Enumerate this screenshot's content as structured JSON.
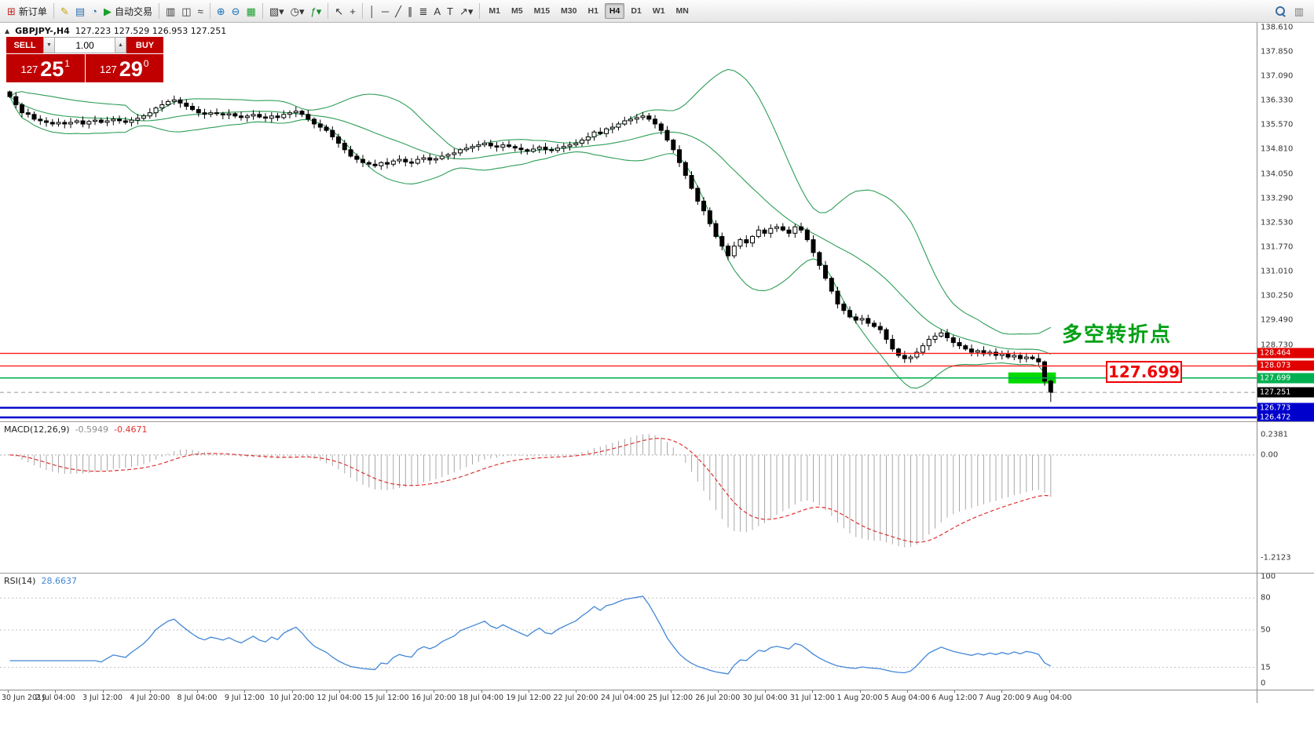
{
  "toolbar": {
    "buttons": [
      {
        "name": "new-order",
        "glyph": "⊞",
        "label": "新订单",
        "color": "#c22222"
      },
      {
        "name": "sep"
      },
      {
        "name": "metaeditor",
        "glyph": "✎",
        "color": "#c8a000"
      },
      {
        "name": "market-watch",
        "glyph": "▤",
        "color": "#2f6fb0"
      },
      {
        "name": "data-window",
        "glyph": "◔",
        "color": "#2f6fb0"
      },
      {
        "name": "autotrading",
        "glyph": "▶",
        "label": "自动交易",
        "color": "#18a02c"
      },
      {
        "name": "sep"
      },
      {
        "name": "bar-chart",
        "glyph": "▥",
        "color": "#333333"
      },
      {
        "name": "candlestick-chart",
        "glyph": "◫",
        "color": "#333333"
      },
      {
        "name": "line-chart",
        "glyph": "≈",
        "color": "#333333"
      },
      {
        "name": "sep"
      },
      {
        "name": "zoom-in",
        "glyph": "⊕",
        "color": "#1a6fb5"
      },
      {
        "name": "zoom-out",
        "glyph": "⊖",
        "color": "#1a6fb5"
      },
      {
        "name": "tile-windows",
        "glyph": "▦",
        "color": "#18a02c"
      },
      {
        "name": "sep"
      },
      {
        "name": "new-chart",
        "glyph": "▧▾",
        "color": "#333333"
      },
      {
        "name": "profiles",
        "glyph": "◷▾",
        "color": "#333333"
      },
      {
        "name": "indicators",
        "glyph": "ƒ▾",
        "color": "#168a2c"
      },
      {
        "name": "sep"
      },
      {
        "name": "cursor",
        "glyph": "↖",
        "color": "#333333"
      },
      {
        "name": "crosshair",
        "glyph": "+",
        "color": "#333333"
      },
      {
        "name": "sep"
      },
      {
        "name": "vertical-line",
        "glyph": "│",
        "color": "#333333"
      },
      {
        "name": "horizontal-line",
        "glyph": "─",
        "color": "#333333"
      },
      {
        "name": "trendline",
        "glyph": "╱",
        "color": "#333333"
      },
      {
        "name": "channel",
        "glyph": "∥",
        "color": "#333333"
      },
      {
        "name": "fibonacci",
        "glyph": "≣",
        "color": "#333333"
      },
      {
        "name": "text",
        "glyph": "A",
        "color": "#333333"
      },
      {
        "name": "label",
        "glyph": "T",
        "color": "#333333"
      },
      {
        "name": "arrows",
        "glyph": "↗▾",
        "color": "#333333"
      },
      {
        "name": "sep"
      }
    ],
    "timeframes": [
      "M1",
      "M5",
      "M15",
      "M30",
      "H1",
      "H4",
      "D1",
      "W1",
      "MN"
    ],
    "active_timeframe": "H4"
  },
  "trade_panel": {
    "sell_label": "SELL",
    "buy_label": "BUY",
    "volume": "1.00",
    "sell_price": {
      "prefix": "127",
      "big": "25",
      "sup": "1"
    },
    "buy_price": {
      "prefix": "127",
      "big": "29",
      "sup": "0"
    }
  },
  "chart": {
    "symbol": "GBPJPY-,H4",
    "ohlc_text": "127.223 127.529 126.953 127.251",
    "annotation": "多空转折点",
    "callout": "127.699",
    "axis_labels": [
      "138.610",
      "137.850",
      "137.090",
      "136.330",
      "135.570",
      "134.810",
      "134.050",
      "133.290",
      "132.530",
      "131.770",
      "131.010",
      "130.250",
      "129.490",
      "128.730"
    ],
    "levels": [
      {
        "price": 128.464,
        "label": "128.464",
        "line_color": "#ff1f1f",
        "label_bg": "#e00000",
        "width": 1.4
      },
      {
        "price": 128.073,
        "label": "128.073",
        "line_color": "#ff1f1f",
        "label_bg": "#e00000",
        "width": 1.4
      },
      {
        "price": 127.699,
        "label": "127.699",
        "line_color": "#00b050",
        "label_bg": "#00b050",
        "width": 1.6,
        "highlight": true
      },
      {
        "price": 127.251,
        "label": "127.251",
        "line_color": "#999999",
        "label_bg": "#000000",
        "width": 1,
        "dashed": true,
        "current": true
      },
      {
        "price": 126.773,
        "label": "126.773",
        "line_color": "#0000cd",
        "label_bg": "#0000cd",
        "width": 2.4
      },
      {
        "price": 126.472,
        "label": "126.472",
        "line_color": "#0000cd",
        "label_bg": "#0000cd",
        "width": 2.4
      }
    ]
  },
  "macd": {
    "title": "MACD(12,26,9)",
    "main_value": "-0.5949",
    "signal_value": "-0.4671",
    "axis": [
      {
        "text": "0.2381",
        "value": 0.2381
      },
      {
        "text": "0.00",
        "value": 0
      },
      {
        "text": "-1.2123",
        "value": -1.2123
      }
    ]
  },
  "rsi": {
    "title": "RSI(14)",
    "value": "28.6637",
    "axis": [
      {
        "text": "100",
        "value": 100
      },
      {
        "text": "80",
        "value": 80
      },
      {
        "text": "50",
        "value": 50
      },
      {
        "text": "15",
        "value": 15
      },
      {
        "text": "0",
        "value": 0
      }
    ],
    "levels": [
      80,
      50,
      15
    ]
  },
  "time_axis": [
    "30 Jun 2019",
    "2 Jul 04:00",
    "3 Jul 12:00",
    "4 Jul 20:00",
    "8 Jul 04:00",
    "9 Jul 12:00",
    "10 Jul 20:00",
    "12 Jul 04:00",
    "15 Jul 12:00",
    "16 Jul 20:00",
    "18 Jul 04:00",
    "19 Jul 12:00",
    "22 Jul 20:00",
    "24 Jul 04:00",
    "25 Jul 12:00",
    "26 Jul 20:00",
    "30 Jul 04:00",
    "31 Jul 12:00",
    "1 Aug 20:00",
    "5 Aug 04:00",
    "6 Aug 12:00",
    "7 Aug 20:00",
    "9 Aug 04:00"
  ],
  "chart_data": {
    "type": "candlestick",
    "symbol": "GBPJPY-",
    "timeframe": "H4",
    "current_bar": {
      "open": 127.223,
      "high": 127.529,
      "low": 126.953,
      "close": 127.251
    },
    "bid": "127.251",
    "ask": "127.290",
    "price_range": [
      126.35,
      138.75
    ],
    "first_open": 136.6,
    "closes": [
      136.45,
      136.2,
      135.95,
      135.9,
      135.75,
      135.7,
      135.65,
      135.6,
      135.65,
      135.6,
      135.65,
      135.7,
      135.6,
      135.68,
      135.72,
      135.65,
      135.7,
      135.75,
      135.7,
      135.65,
      135.72,
      135.78,
      135.85,
      135.95,
      136.1,
      136.2,
      136.3,
      136.35,
      136.25,
      136.15,
      136.05,
      135.95,
      135.9,
      135.95,
      135.92,
      135.88,
      135.92,
      135.85,
      135.8,
      135.85,
      135.9,
      135.82,
      135.78,
      135.85,
      135.8,
      135.9,
      135.95,
      136.0,
      135.9,
      135.75,
      135.6,
      135.5,
      135.4,
      135.2,
      135.0,
      134.8,
      134.6,
      134.5,
      134.4,
      134.35,
      134.3,
      134.4,
      134.35,
      134.45,
      134.5,
      134.42,
      134.38,
      134.5,
      134.55,
      134.48,
      134.52,
      134.6,
      134.65,
      134.7,
      134.8,
      134.85,
      134.9,
      134.95,
      135.0,
      134.92,
      134.88,
      134.95,
      134.9,
      134.85,
      134.8,
      134.75,
      134.82,
      134.88,
      134.8,
      134.78,
      134.85,
      134.9,
      134.95,
      135.0,
      135.1,
      135.2,
      135.35,
      135.3,
      135.45,
      135.5,
      135.6,
      135.7,
      135.75,
      135.8,
      135.85,
      135.75,
      135.6,
      135.4,
      135.1,
      134.8,
      134.4,
      134.0,
      133.6,
      133.2,
      132.9,
      132.5,
      132.1,
      131.8,
      131.5,
      131.8,
      132.0,
      131.9,
      132.1,
      132.3,
      132.2,
      132.35,
      132.4,
      132.3,
      132.2,
      132.4,
      132.3,
      132.0,
      131.6,
      131.2,
      130.8,
      130.4,
      130.0,
      129.8,
      129.6,
      129.5,
      129.55,
      129.4,
      129.3,
      129.2,
      128.9,
      128.6,
      128.4,
      128.3,
      128.35,
      128.5,
      128.7,
      128.9,
      129.0,
      129.1,
      128.95,
      128.8,
      128.7,
      128.6,
      128.5,
      128.55,
      128.45,
      128.5,
      128.4,
      128.45,
      128.35,
      128.4,
      128.3,
      128.35,
      128.3,
      128.2,
      127.6,
      127.251
    ],
    "indicators": {
      "bollinger": {
        "period": 20,
        "deviation": 2,
        "color": "#2e9e57"
      },
      "macd": {
        "fast": 12,
        "slow": 26,
        "signal": 9,
        "main": -0.5949,
        "signal_value": -0.4671,
        "display_range": [
          -1.2123,
          0.2381
        ]
      },
      "rsi": {
        "period": 14,
        "value": 28.6637,
        "range": [
          0,
          100
        ]
      }
    },
    "horizontal_levels": [
      128.464,
      128.073,
      127.699,
      126.773,
      126.472
    ]
  }
}
